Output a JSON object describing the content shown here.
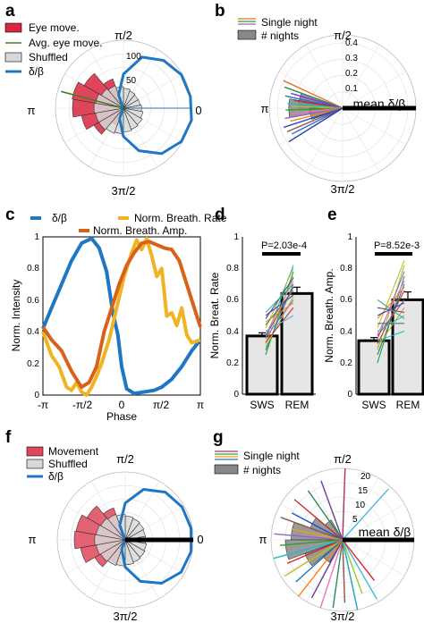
{
  "panels": {
    "a": {
      "label": "a",
      "legend": [
        "Eye move.",
        "Avg. eye move.",
        "Shuffled",
        "δ/β"
      ],
      "radial_ticks": [
        "50",
        "100"
      ],
      "angle_labels": {
        "top": "π/2",
        "left": "π",
        "right": "0",
        "bottom": "3π/2"
      }
    },
    "b": {
      "label": "b",
      "legend": [
        "Single night",
        "# nights"
      ],
      "radial_ticks": [
        "0.1",
        "0.2",
        "0.3",
        "0.4"
      ],
      "angle_labels": {
        "top": "π/2",
        "left": "π",
        "bottom": "3π/2"
      },
      "mean_label": "mean δ/β"
    },
    "c": {
      "label": "c",
      "legend": [
        "δ/β",
        "Norm. Breath. Rate",
        "Norm. Breath. Amp."
      ],
      "ylabel": "Norm. Intensity",
      "xlabel": "Phase",
      "xticks": [
        "-π",
        "-π/2",
        "0",
        "π/2",
        "π"
      ],
      "yticks": [
        "0",
        "0.2",
        "0.4",
        "0.6",
        "0.8",
        "1"
      ]
    },
    "d": {
      "label": "d",
      "pvalue": "P=2.03e-4",
      "ylabel": "Norm. Breat. Rate",
      "categories": [
        "SWS",
        "REM"
      ],
      "yticks": [
        "0",
        "0.2",
        "0.4",
        "0.6",
        "0.8",
        "1"
      ]
    },
    "e": {
      "label": "e",
      "pvalue": "P=8.52e-3",
      "ylabel": "Norm. Breath. Amp.",
      "categories": [
        "SWS",
        "REM"
      ],
      "yticks": [
        "0",
        "0.2",
        "0.4",
        "0.6",
        "0.8",
        "1"
      ]
    },
    "f": {
      "label": "f",
      "legend": [
        "Movement",
        "Shuffled",
        "δ/β"
      ],
      "angle_labels": {
        "top": "π/2",
        "left": "π",
        "right": "0",
        "bottom": "3π/2"
      }
    },
    "g": {
      "label": "g",
      "legend": [
        "Single night",
        "# nights"
      ],
      "radial_ticks": [
        "5",
        "10",
        "15",
        "20"
      ],
      "angle_labels": {
        "top": "π/2",
        "left": "π",
        "bottom": "3π/2"
      },
      "mean_label": "mean δ/β"
    }
  },
  "colors": {
    "delta_beta": "#1f77c4",
    "eye": "#d9263f",
    "movement": "#e0475c",
    "shuffled": "#d8d8d8",
    "breath_rate": "#f0b323",
    "breath_amp": "#d9621a",
    "bar_fill": "#e6e6e6"
  },
  "chart_data": [
    {
      "type": "polar-histogram",
      "panel": "a",
      "rmax": 120,
      "rticks": [
        50,
        100
      ],
      "eye_move": [
        {
          "angle_deg": 120,
          "r": 55
        },
        {
          "angle_deg": 140,
          "r": 80
        },
        {
          "angle_deg": 160,
          "r": 92
        },
        {
          "angle_deg": 180,
          "r": 90
        },
        {
          "angle_deg": 200,
          "r": 75
        },
        {
          "angle_deg": 220,
          "r": 60
        },
        {
          "angle_deg": 240,
          "r": 32
        }
      ],
      "shuffled": [
        {
          "angle_deg": 80,
          "r": 35
        },
        {
          "angle_deg": 100,
          "r": 38
        },
        {
          "angle_deg": 120,
          "r": 42
        },
        {
          "angle_deg": 140,
          "r": 45
        },
        {
          "angle_deg": 160,
          "r": 50
        },
        {
          "angle_deg": 180,
          "r": 52
        },
        {
          "angle_deg": 200,
          "r": 50
        },
        {
          "angle_deg": 220,
          "r": 50
        },
        {
          "angle_deg": 240,
          "r": 47
        },
        {
          "angle_deg": 260,
          "r": 45
        },
        {
          "angle_deg": 280,
          "r": 42
        },
        {
          "angle_deg": 300,
          "r": 40
        },
        {
          "angle_deg": 320,
          "r": 38
        },
        {
          "angle_deg": 340,
          "r": 35
        },
        {
          "angle_deg": 0,
          "r": 32
        },
        {
          "angle_deg": 20,
          "r": 30
        },
        {
          "angle_deg": 40,
          "r": 30
        },
        {
          "angle_deg": 60,
          "r": 32
        }
      ],
      "avg_eye_angle_deg": 165,
      "delta_beta_curve": [
        {
          "angle_deg": 130,
          "r": 2
        },
        {
          "angle_deg": 110,
          "r": 25
        },
        {
          "angle_deg": 90,
          "r": 60
        },
        {
          "angle_deg": 70,
          "r": 96
        },
        {
          "angle_deg": 50,
          "r": 110
        },
        {
          "angle_deg": 30,
          "r": 118
        },
        {
          "angle_deg": 10,
          "r": 120
        },
        {
          "angle_deg": 350,
          "r": 122
        },
        {
          "angle_deg": 330,
          "r": 118
        },
        {
          "angle_deg": 310,
          "r": 105
        },
        {
          "angle_deg": 290,
          "r": 80
        },
        {
          "angle_deg": 270,
          "r": 50
        },
        {
          "angle_deg": 250,
          "r": 20
        },
        {
          "angle_deg": 230,
          "r": 2
        }
      ]
    },
    {
      "type": "polar-lines",
      "panel": "b",
      "rmax": 0.45,
      "rticks": [
        0.1,
        0.2,
        0.3,
        0.4
      ],
      "single_nights": [
        {
          "angle_deg": 155,
          "r": 0.4,
          "color": "#e8702a"
        },
        {
          "angle_deg": 160,
          "r": 0.38,
          "color": "#2e8b57"
        },
        {
          "angle_deg": 164,
          "r": 0.33,
          "color": "#8a2be2"
        },
        {
          "angle_deg": 168,
          "r": 0.36,
          "color": "#1f77b4"
        },
        {
          "angle_deg": 171,
          "r": 0.3,
          "color": "#d62728"
        },
        {
          "angle_deg": 175,
          "r": 0.34,
          "color": "#17becf"
        },
        {
          "angle_deg": 178,
          "r": 0.31,
          "color": "#bcbd22"
        },
        {
          "angle_deg": 182,
          "r": 0.35,
          "color": "#2ca02c"
        },
        {
          "angle_deg": 186,
          "r": 0.32,
          "color": "#e377c2"
        },
        {
          "angle_deg": 190,
          "r": 0.36,
          "color": "#9467bd"
        },
        {
          "angle_deg": 194,
          "r": 0.33,
          "color": "#ff7f0e"
        },
        {
          "angle_deg": 198,
          "r": 0.38,
          "color": "#1f4fcc"
        },
        {
          "angle_deg": 203,
          "r": 0.37,
          "color": "#8c564b"
        },
        {
          "angle_deg": 207,
          "r": 0.35,
          "color": "#2f6fd6"
        },
        {
          "angle_deg": 212,
          "r": 0.39,
          "color": "#203f9f"
        }
      ],
      "nights_hist": [
        {
          "angle_deg": 170,
          "r": 0.27
        },
        {
          "angle_deg": 180,
          "r": 0.33
        },
        {
          "angle_deg": 190,
          "r": 0.2
        }
      ],
      "mean_angle_deg": 0,
      "mean_r": 0.45
    },
    {
      "type": "line",
      "panel": "c",
      "xlim": [
        -3.1416,
        3.1416
      ],
      "ylim": [
        0,
        1
      ],
      "series": [
        {
          "name": "δ/β",
          "x": [
            -3.1416,
            -2.8,
            -2.4,
            -2.0,
            -1.6,
            -1.2,
            -0.9,
            -0.6,
            -0.35,
            -0.15,
            0.0,
            0.2,
            0.5,
            0.9,
            1.3,
            1.6,
            2.0,
            2.4,
            2.8,
            3.1416
          ],
          "y": [
            0.42,
            0.55,
            0.7,
            0.85,
            0.96,
            0.99,
            0.93,
            0.78,
            0.52,
            0.38,
            0.18,
            0.04,
            0.01,
            0.02,
            0.03,
            0.05,
            0.1,
            0.18,
            0.28,
            0.35
          ]
        },
        {
          "name": "Norm. Breath. Rate",
          "x": [
            -3.1416,
            -2.8,
            -2.5,
            -2.2,
            -2.0,
            -1.8,
            -1.6,
            -1.4,
            -1.2,
            -1.0,
            -0.8,
            -0.5,
            -0.2,
            0.1,
            0.4,
            0.6,
            0.8,
            1.0,
            1.2,
            1.4,
            1.6,
            1.8,
            2.0,
            2.2,
            2.4,
            2.6,
            2.8,
            3.1416
          ],
          "y": [
            0.4,
            0.25,
            0.18,
            0.05,
            0.03,
            0.08,
            0.02,
            0.0,
            0.05,
            0.12,
            0.2,
            0.35,
            0.55,
            0.75,
            0.9,
            0.98,
            0.92,
            0.99,
            0.88,
            0.75,
            0.8,
            0.5,
            0.52,
            0.44,
            0.55,
            0.38,
            0.33,
            0.35
          ]
        },
        {
          "name": "Norm. Breath. Amp.",
          "x": [
            -3.1416,
            -2.8,
            -2.4,
            -2.0,
            -1.8,
            -1.6,
            -1.3,
            -1.0,
            -0.7,
            -0.4,
            -0.1,
            0.2,
            0.5,
            0.8,
            1.1,
            1.4,
            1.7,
            2.0,
            2.3,
            2.6,
            2.9,
            3.1416
          ],
          "y": [
            0.43,
            0.35,
            0.28,
            0.15,
            0.1,
            0.05,
            0.08,
            0.18,
            0.4,
            0.55,
            0.7,
            0.82,
            0.9,
            0.96,
            0.97,
            0.95,
            0.93,
            0.92,
            0.85,
            0.7,
            0.55,
            0.43
          ]
        }
      ]
    },
    {
      "type": "bar",
      "panel": "d",
      "categories": [
        "SWS",
        "REM"
      ],
      "values": [
        0.37,
        0.64
      ],
      "errors": [
        0.02,
        0.04
      ],
      "ylim": [
        0,
        1
      ],
      "pairs_sws": [
        0.25,
        0.28,
        0.3,
        0.32,
        0.33,
        0.35,
        0.36,
        0.37,
        0.38,
        0.4,
        0.42,
        0.44,
        0.46,
        0.48,
        0.5,
        0.52
      ],
      "pairs_rem": [
        0.78,
        0.7,
        0.62,
        0.75,
        0.55,
        0.82,
        0.6,
        0.68,
        0.72,
        0.5,
        0.8,
        0.66,
        0.58,
        0.74,
        0.63,
        0.7
      ]
    },
    {
      "type": "bar",
      "panel": "e",
      "categories": [
        "SWS",
        "REM"
      ],
      "values": [
        0.34,
        0.6
      ],
      "errors": [
        0.02,
        0.05
      ],
      "ylim": [
        0,
        1
      ],
      "pairs_sws": [
        0.2,
        0.25,
        0.28,
        0.3,
        0.32,
        0.34,
        0.35,
        0.37,
        0.38,
        0.4,
        0.42,
        0.45,
        0.48,
        0.5,
        0.55,
        0.6
      ],
      "pairs_rem": [
        0.75,
        0.7,
        0.82,
        0.55,
        0.66,
        0.4,
        0.78,
        0.6,
        0.72,
        0.5,
        0.85,
        0.45,
        0.68,
        0.58,
        0.52,
        0.48
      ]
    },
    {
      "type": "polar-histogram",
      "panel": "f",
      "rmax": 120,
      "movement": [
        {
          "angle_deg": 120,
          "r": 60
        },
        {
          "angle_deg": 140,
          "r": 78
        },
        {
          "angle_deg": 160,
          "r": 88
        },
        {
          "angle_deg": 180,
          "r": 90
        },
        {
          "angle_deg": 200,
          "r": 80
        },
        {
          "angle_deg": 220,
          "r": 62
        },
        {
          "angle_deg": 240,
          "r": 45
        }
      ],
      "shuffled": [
        {
          "angle_deg": 80,
          "r": 42
        },
        {
          "angle_deg": 100,
          "r": 45
        },
        {
          "angle_deg": 120,
          "r": 48
        },
        {
          "angle_deg": 140,
          "r": 50
        },
        {
          "angle_deg": 160,
          "r": 52
        },
        {
          "angle_deg": 180,
          "r": 54
        },
        {
          "angle_deg": 200,
          "r": 52
        },
        {
          "angle_deg": 220,
          "r": 50
        },
        {
          "angle_deg": 240,
          "r": 48
        },
        {
          "angle_deg": 260,
          "r": 46
        },
        {
          "angle_deg": 280,
          "r": 44
        },
        {
          "angle_deg": 300,
          "r": 42
        },
        {
          "angle_deg": 320,
          "r": 40
        },
        {
          "angle_deg": 340,
          "r": 38
        },
        {
          "angle_deg": 0,
          "r": 36
        },
        {
          "angle_deg": 20,
          "r": 36
        },
        {
          "angle_deg": 40,
          "r": 38
        },
        {
          "angle_deg": 60,
          "r": 40
        }
      ],
      "delta_beta_curve": [
        {
          "angle_deg": 130,
          "r": 2
        },
        {
          "angle_deg": 110,
          "r": 28
        },
        {
          "angle_deg": 90,
          "r": 65
        },
        {
          "angle_deg": 70,
          "r": 95
        },
        {
          "angle_deg": 50,
          "r": 110
        },
        {
          "angle_deg": 30,
          "r": 116
        },
        {
          "angle_deg": 10,
          "r": 118
        },
        {
          "angle_deg": 350,
          "r": 118
        },
        {
          "angle_deg": 330,
          "r": 114
        },
        {
          "angle_deg": 310,
          "r": 100
        },
        {
          "angle_deg": 290,
          "r": 78
        },
        {
          "angle_deg": 270,
          "r": 48
        },
        {
          "angle_deg": 250,
          "r": 18
        },
        {
          "angle_deg": 230,
          "r": 2
        }
      ],
      "mean_angle_deg": 0,
      "mean_r": 120
    },
    {
      "type": "polar-lines",
      "panel": "g",
      "rmax": 25,
      "rticks": [
        5,
        10,
        15,
        20
      ],
      "single_nights": [
        {
          "angle_deg": 88,
          "r": 25,
          "color": "#b0306a"
        },
        {
          "angle_deg": 48,
          "r": 24,
          "color": "#4ab6e8"
        },
        {
          "angle_deg": 110,
          "r": 22,
          "color": "#6a3d9a"
        },
        {
          "angle_deg": 125,
          "r": 21,
          "color": "#2e8b57"
        },
        {
          "angle_deg": 140,
          "r": 22,
          "color": "#cc2a2a"
        },
        {
          "angle_deg": 152,
          "r": 20,
          "color": "#1f4fcc"
        },
        {
          "angle_deg": 160,
          "r": 23,
          "color": "#8c564b"
        },
        {
          "angle_deg": 168,
          "r": 18,
          "color": "#e8a21a"
        },
        {
          "angle_deg": 175,
          "r": 24,
          "color": "#9467bd"
        },
        {
          "angle_deg": 185,
          "r": 22,
          "color": "#2ca02c"
        },
        {
          "angle_deg": 195,
          "r": 25,
          "color": "#17becf"
        },
        {
          "angle_deg": 203,
          "r": 21,
          "color": "#d62728"
        },
        {
          "angle_deg": 212,
          "r": 24,
          "color": "#bcbd22"
        },
        {
          "angle_deg": 222,
          "r": 22,
          "color": "#1f77b4"
        },
        {
          "angle_deg": 232,
          "r": 25,
          "color": "#ff7f0e"
        },
        {
          "angle_deg": 242,
          "r": 23,
          "color": "#6a3d9a"
        },
        {
          "angle_deg": 252,
          "r": 25,
          "color": "#e377c2"
        },
        {
          "angle_deg": 262,
          "r": 24,
          "color": "#2e8b57"
        },
        {
          "angle_deg": 272,
          "r": 22,
          "color": "#8c564b"
        },
        {
          "angle_deg": 282,
          "r": 25,
          "color": "#17a2c4"
        },
        {
          "angle_deg": 290,
          "r": 20,
          "color": "#9acd32"
        },
        {
          "angle_deg": 300,
          "r": 24,
          "color": "#4ab6e8"
        },
        {
          "angle_deg": 308,
          "r": 18,
          "color": "#d62728"
        }
      ],
      "nights_hist": [
        {
          "angle_deg": 130,
          "r": 8
        },
        {
          "angle_deg": 150,
          "r": 12
        },
        {
          "angle_deg": 170,
          "r": 18
        },
        {
          "angle_deg": 190,
          "r": 20
        },
        {
          "angle_deg": 210,
          "r": 14
        },
        {
          "angle_deg": 230,
          "r": 9
        }
      ],
      "mean_angle_deg": 0,
      "mean_r": 25
    }
  ]
}
